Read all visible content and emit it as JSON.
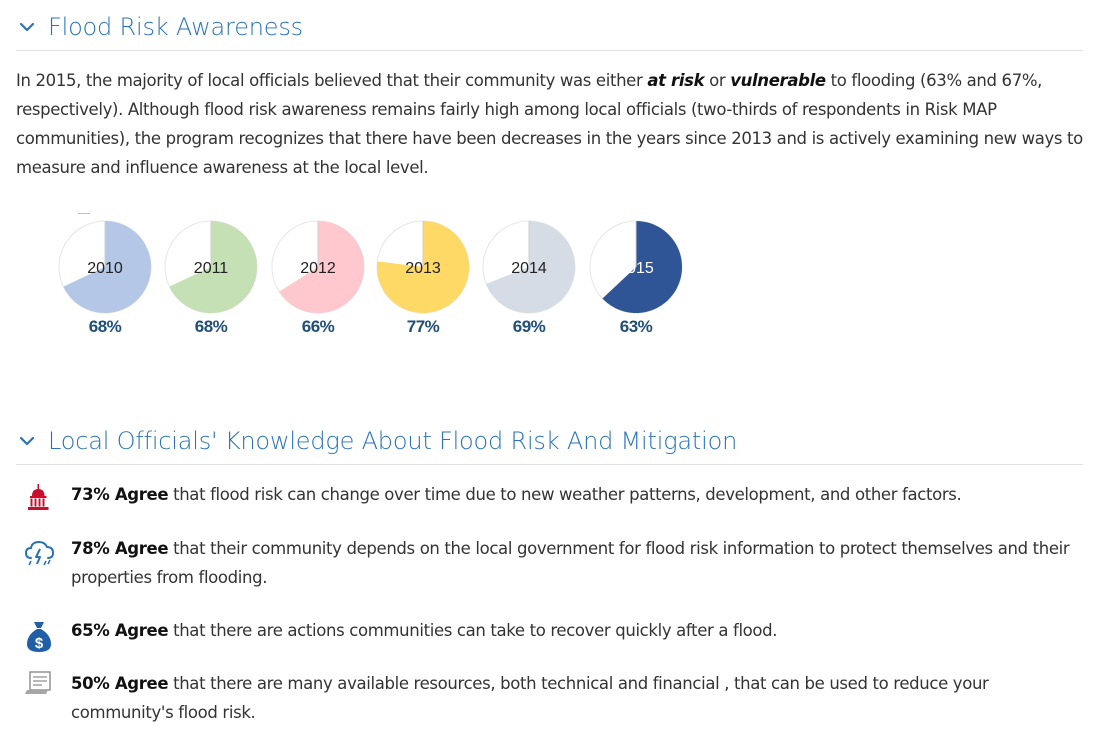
{
  "sections": {
    "awareness": {
      "title": "Flood Risk Awareness",
      "intro": {
        "p1": "In 2015, the majority of local officials believed that their community was either ",
        "em1": "at risk",
        "p2": " or ",
        "em2": "vulnerable",
        "p3": " to flooding (63% and 67%, respectively). Although flood risk awareness remains fairly high among local officials (two-thirds of respondents in Risk MAP communities), the program recognizes that there have been decreases in the years since 2013 and is actively examining new ways to measure and influence awareness at the local level."
      }
    },
    "knowledge": {
      "title": "Local Officials' Knowledge About Flood Risk And Mitigation",
      "stats": [
        {
          "icon": "capitol-building-icon",
          "bold": "73% Agree",
          "text": " that flood risk can change over time due to new weather patterns, development, and other factors."
        },
        {
          "icon": "storm-cloud-icon",
          "bold": "78% Agree",
          "text": " that their community depends on the local government for flood risk information to protect themselves and their properties from flooding."
        },
        {
          "icon": "money-bag-icon",
          "bold": "65% Agree",
          "text": " that there are actions communities can take to recover quickly after a flood."
        },
        {
          "icon": "document-icon",
          "bold": "50% Agree",
          "text": "  that there are many available resources, both technical and financial , that can be used to reduce your community's flood risk."
        }
      ]
    }
  },
  "chart_data": {
    "type": "pie",
    "categories": [
      "2010",
      "2011",
      "2012",
      "2013",
      "2014",
      "2015"
    ],
    "values": [
      68,
      68,
      66,
      77,
      69,
      63
    ],
    "labels": [
      "68%",
      "68%",
      "66%",
      "77%",
      "69%",
      "63%"
    ],
    "colors": [
      "#b4c7e7",
      "#c5e0b4",
      "#ffc7ce",
      "#ffd966",
      "#d6dce5",
      "#2f5597"
    ],
    "label_color": "#1f4e79"
  }
}
